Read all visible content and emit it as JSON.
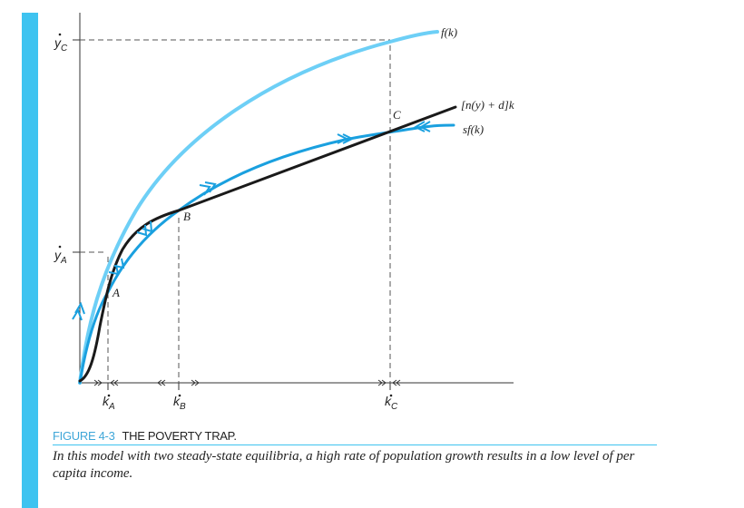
{
  "figure": {
    "number": "FIGURE 4-3",
    "title": "THE POVERTY TRAP.",
    "caption": "In this model with two steady-state equilibria, a high rate of population growth results in a low level of per capita income."
  },
  "curves": {
    "production": "f(k)",
    "break_even": "[n(y) + d]k",
    "saving": "sf(k)"
  },
  "points": {
    "a": "A",
    "b": "B",
    "c": "C"
  },
  "axis": {
    "y_c": {
      "base": "y",
      "sub": "C"
    },
    "y_a": {
      "base": "y",
      "sub": "A"
    },
    "k_a": {
      "base": "k",
      "sub": "A"
    },
    "k_b": {
      "base": "k",
      "sub": "B"
    },
    "k_c": {
      "base": "k",
      "sub": "C"
    }
  },
  "colors": {
    "accent": "#3ec3f0",
    "production": "#6dcff6",
    "saving": "#1aa0df",
    "break_even": "#1a1a1a"
  }
}
